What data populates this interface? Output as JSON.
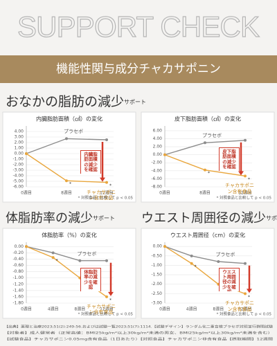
{
  "header": {
    "title": "SUPPORT CHECK",
    "band": "機能性関与成分チャカサポニン"
  },
  "sections": [
    {
      "title": "おなかの脂肪の減少",
      "sub": "サポート"
    },
    {
      "title": "体脂肪率の減少",
      "sub": "サポート"
    },
    {
      "title": "ウエスト周囲径の減少",
      "sub": "サポート"
    }
  ],
  "chart_data": [
    {
      "type": "line",
      "title": "内臓脂肪面積（㎠）の変化",
      "categories": [
        "0週目",
        "8週目",
        "12週目"
      ],
      "series": [
        {
          "name": "プラセボ",
          "color": "#8c8c8c",
          "values": [
            0,
            2.7,
            2.5
          ]
        },
        {
          "name": "チャカサポニン含有食品",
          "color": "#e9a63c",
          "values": [
            0,
            -4.9,
            -5.2
          ]
        }
      ],
      "ylim": [
        -6,
        4.5
      ],
      "yticks": [
        {
          "value": 4,
          "label": "4.00"
        },
        {
          "value": 3,
          "label": "3.00"
        },
        {
          "value": 2,
          "label": "2.00"
        },
        {
          "value": 1,
          "label": "1.00"
        },
        {
          "value": 0,
          "label": "0.00"
        },
        {
          "value": -1,
          "label": "-1.00"
        },
        {
          "value": -2,
          "label": "-2.00"
        },
        {
          "value": -3,
          "label": "-3.00"
        },
        {
          "value": -4,
          "label": "-4.00"
        },
        {
          "value": -5,
          "label": "-5.00"
        },
        {
          "value": -6,
          "label": "-6.00"
        }
      ],
      "annotation": "内臓脂肪面積の減少を確認",
      "marker_label": "*",
      "note": "* 対照食品と比較して p < 0.05"
    },
    {
      "type": "line",
      "title": "皮下脂肪面積（㎠）の変化",
      "categories": [
        "0週目",
        "8週目",
        "12週目"
      ],
      "series": [
        {
          "name": "プラセボ",
          "color": "#8c8c8c",
          "values": [
            0,
            3.0,
            3.6
          ]
        },
        {
          "name": "チャカサポニン含有食品",
          "color": "#e9a63c",
          "values": [
            0,
            -3.8,
            -5.3
          ]
        }
      ],
      "ylim": [
        -8,
        6.5
      ],
      "yticks": [
        {
          "value": 6,
          "label": "6.00"
        },
        {
          "value": 4,
          "label": "4.00"
        },
        {
          "value": 2,
          "label": "2.00"
        },
        {
          "value": 0,
          "label": "0.00"
        },
        {
          "value": -2,
          "label": "-2.00"
        },
        {
          "value": -4,
          "label": "-4.00"
        },
        {
          "value": -6,
          "label": "-6.00"
        },
        {
          "value": -8,
          "label": "-8.00"
        }
      ],
      "annotation": "皮下脂肪面積の減少を確認",
      "marker_label": "*",
      "note": "* 対照食品と比較して p < 0.05"
    },
    {
      "type": "line",
      "title": "体脂肪率（%）の変化",
      "categories": [
        "0週目",
        "4週目",
        "8週目",
        "12週目"
      ],
      "series": [
        {
          "name": "プラセボ",
          "color": "#8c8c8c",
          "values": [
            0,
            -0.2,
            -0.45,
            -0.45
          ]
        },
        {
          "name": "チャカサポニン含有食品",
          "color": "#e9a63c",
          "values": [
            0,
            -0.35,
            -1.0,
            -1.6
          ]
        }
      ],
      "ylim": [
        -1.8,
        0.05
      ],
      "yticks": [
        {
          "value": 0,
          "label": "0.00"
        },
        {
          "value": -0.2,
          "label": "-0.20"
        },
        {
          "value": -0.4,
          "label": "-0.40"
        },
        {
          "value": -0.6,
          "label": "-0.60"
        },
        {
          "value": -0.8,
          "label": "-0.80"
        },
        {
          "value": -1,
          "label": "-1.00"
        },
        {
          "value": -1.2,
          "label": "-1.20"
        },
        {
          "value": -1.4,
          "label": "-1.40"
        },
        {
          "value": -1.6,
          "label": "-1.60"
        },
        {
          "value": -1.8,
          "label": "-1.80"
        }
      ],
      "annotation": "体脂肪率の減少を確認",
      "marker_label": "*",
      "note": "* 対照食品と比較して p < 0.05"
    },
    {
      "type": "line",
      "title": "ウエスト周囲径（cm）の変化",
      "categories": [
        "0週目",
        "4週目",
        "8週目",
        "12週目"
      ],
      "series": [
        {
          "name": "プラセボ",
          "color": "#8c8c8c",
          "values": [
            0,
            -0.5,
            -0.8,
            -0.9
          ]
        },
        {
          "name": "チャカサポニン含有食品",
          "color": "#e9a63c",
          "values": [
            0,
            -0.9,
            -2.0,
            -2.5
          ]
        }
      ],
      "ylim": [
        -3,
        0.08
      ],
      "yticks": [
        {
          "value": 0,
          "label": "0.00"
        },
        {
          "value": -0.5,
          "label": "-0.50"
        },
        {
          "value": -1,
          "label": "-1.00"
        },
        {
          "value": -1.5,
          "label": "-1.50"
        },
        {
          "value": -2,
          "label": "-2.00"
        },
        {
          "value": -2.5,
          "label": "-2.50"
        },
        {
          "value": -3,
          "label": "-3.00"
        }
      ],
      "annotation": "ウエスト周囲径の減少を確認",
      "marker_label": "*",
      "note": "* 対照食品と比較して p < 0.05"
    }
  ],
  "footer": [
    "【出典】薬理と治療2023;51(2):249-56.およびは試験一覧2023;51(7):1114.【試験デザイン】ランダム化二重盲検プラセボ対照並行群間試験",
    "【対象者】成人健常者（正常高値：BMI25kg/m²以上30kg/m²未満の男女、BMI25kg/m²以上30kg/m²未満を含む）",
    "【試験食品】チャカサポニン0.05mg含有食品（1日あたり）【対照食品】チャカサポニン非含有食品【摂取期間】12週間"
  ]
}
